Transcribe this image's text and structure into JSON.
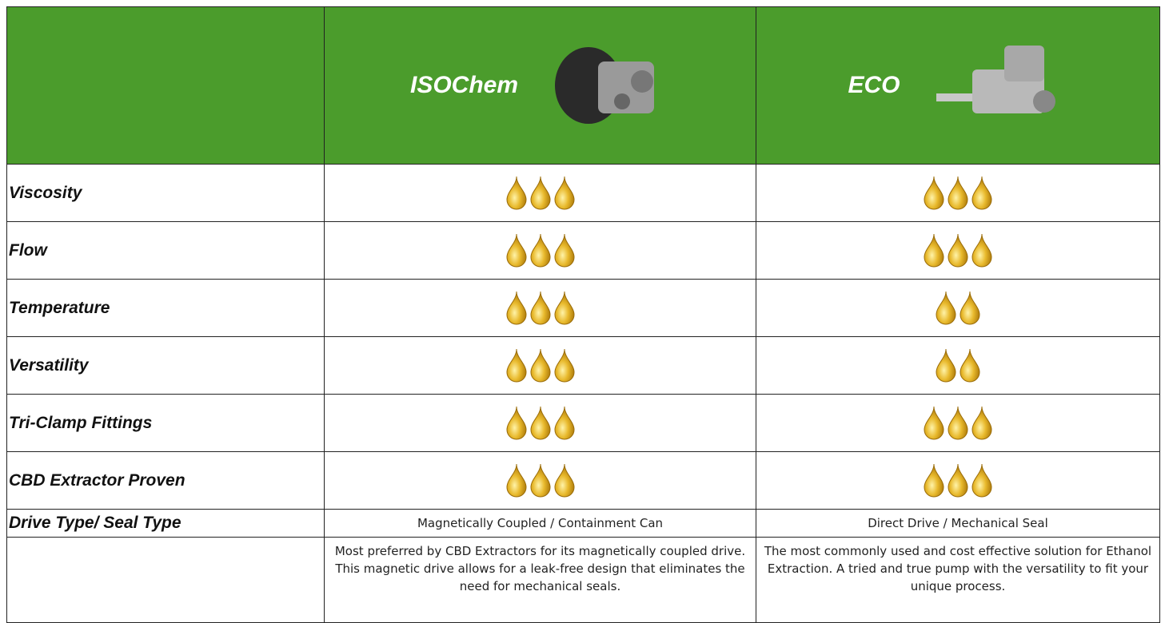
{
  "table": {
    "columns": [
      "ISOChem",
      "ECO"
    ],
    "rows": [
      {
        "label": "Viscosity",
        "ratings": [
          3,
          3
        ]
      },
      {
        "label": "Flow",
        "ratings": [
          3,
          3
        ]
      },
      {
        "label": "Temperature",
        "ratings": [
          3,
          2
        ]
      },
      {
        "label": "Versatility",
        "ratings": [
          3,
          2
        ]
      },
      {
        "label": "Tri-Clamp Fittings",
        "ratings": [
          3,
          3
        ]
      },
      {
        "label": "CBD Extractor Proven",
        "ratings": [
          3,
          3
        ]
      }
    ],
    "drive_row": {
      "label": "Drive Type/ Seal Type",
      "values": [
        "Magnetically Coupled / Containment Can",
        "Direct Drive / Mechanical Seal"
      ]
    },
    "descriptions": [
      "Most preferred by CBD Extractors for its magnetically coupled drive. This magnetic drive allows for a leak-free design that eliminates the need for mechanical seals.",
      "The most commonly used and cost effective solution for Ethanol Extraction. A tried and true pump with the versatility to fit your unique process."
    ]
  }
}
